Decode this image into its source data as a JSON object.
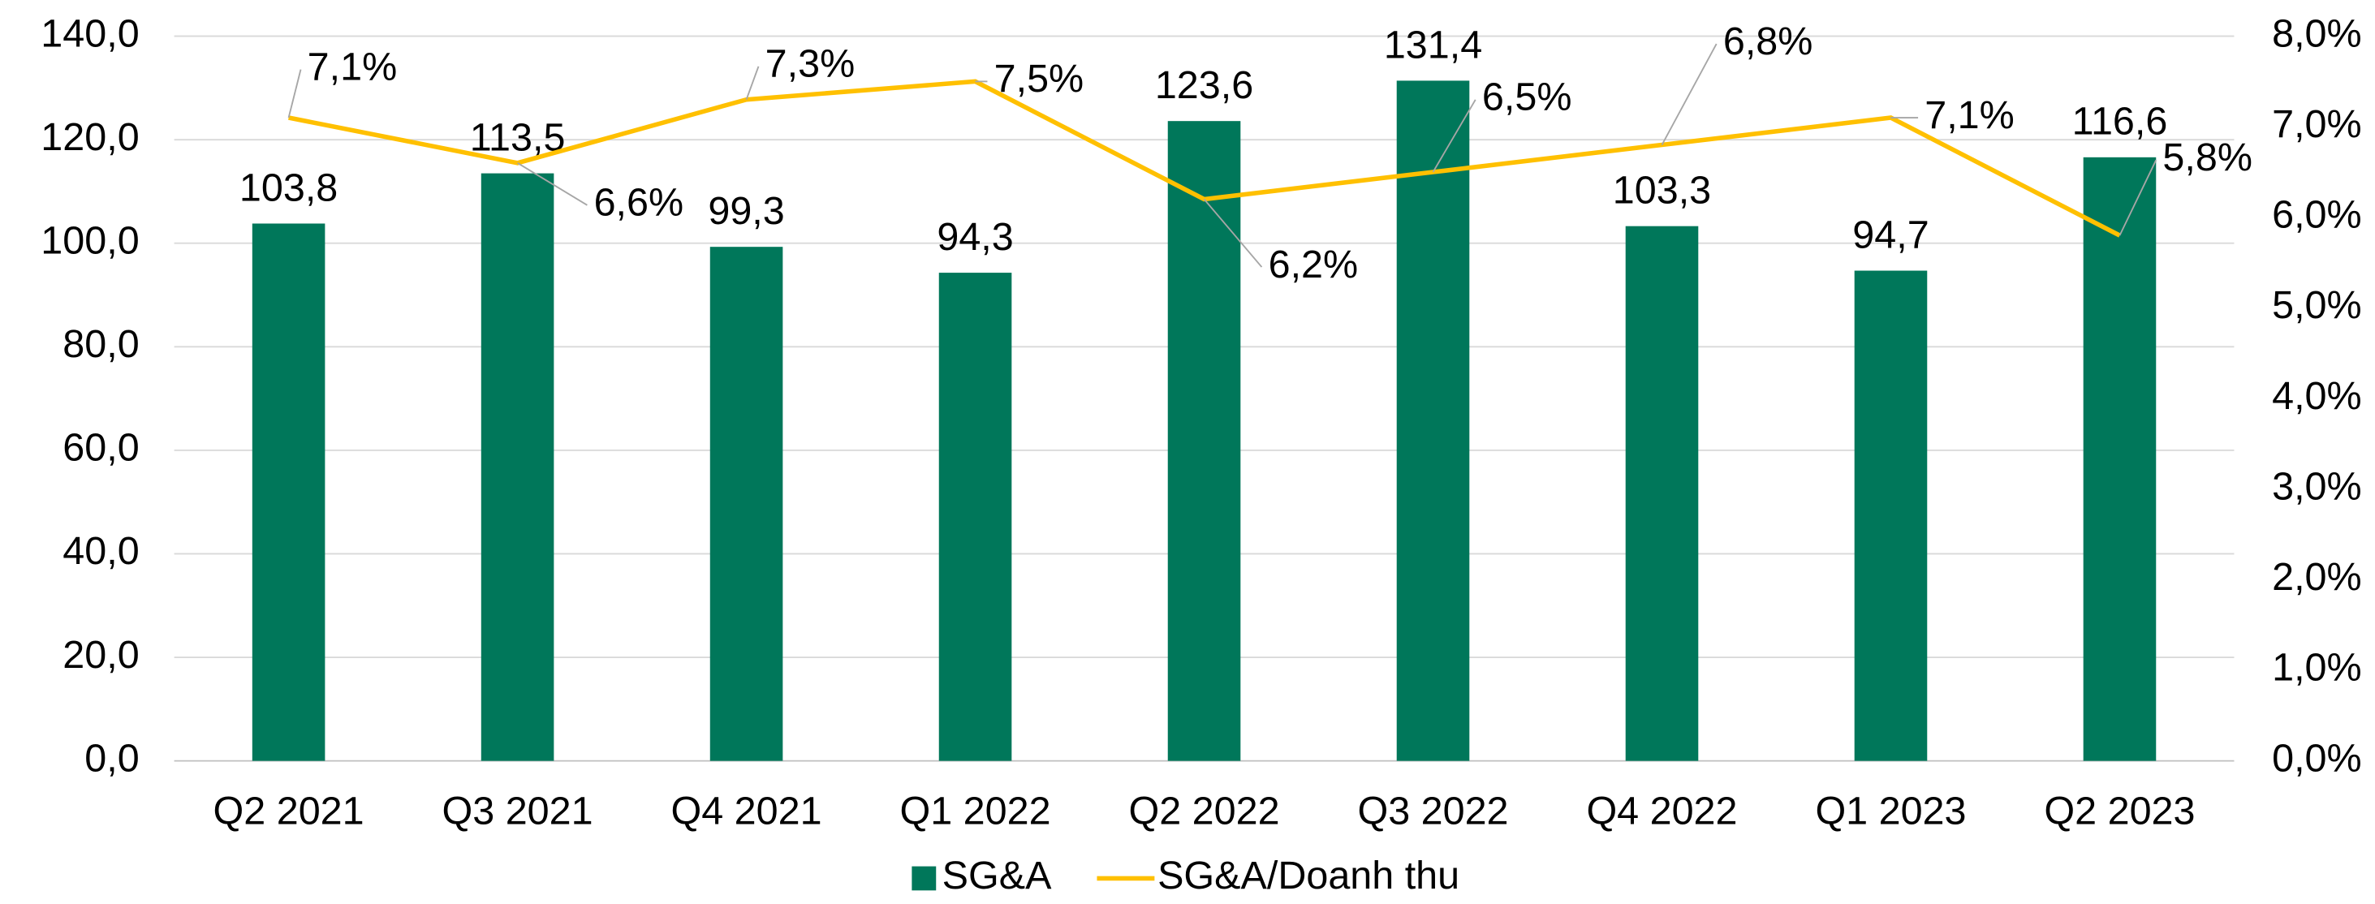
{
  "chart_data": {
    "type": "bar",
    "categories": [
      "Q2 2021",
      "Q3 2021",
      "Q4 2021",
      "Q1 2022",
      "Q2 2022",
      "Q3 2022",
      "Q4 2022",
      "Q1 2023",
      "Q2 2023"
    ],
    "series": [
      {
        "name": "SG&A",
        "type": "bar",
        "color": "#00775a",
        "values": [
          103.8,
          113.5,
          99.3,
          94.3,
          123.6,
          131.4,
          103.3,
          94.7,
          116.6
        ],
        "value_labels": [
          "103,8",
          "113,5",
          "99,3",
          "94,3",
          "123,6",
          "131,4",
          "103,3",
          "94,7",
          "116,6"
        ]
      },
      {
        "name": "SG&A/Doanh thu",
        "type": "line",
        "axis": "y2",
        "color": "#ffc000",
        "values": [
          7.1,
          6.6,
          7.3,
          7.5,
          6.2,
          6.5,
          6.8,
          7.1,
          5.8
        ],
        "value_labels": [
          "7,1%",
          "6,6%",
          "7,3%",
          "7,5%",
          "6,2%",
          "6,5%",
          "6,8%",
          "7,1%",
          "5,8%"
        ]
      }
    ],
    "ylim": [
      0,
      140
    ],
    "yticks": [
      {
        "value": 0,
        "label": "0,0"
      },
      {
        "value": 20,
        "label": "20,0"
      },
      {
        "value": 40,
        "label": "40,0"
      },
      {
        "value": 60,
        "label": "60,0"
      },
      {
        "value": 80,
        "label": "80,0"
      },
      {
        "value": 100,
        "label": "100,0"
      },
      {
        "value": 120,
        "label": "120,0"
      },
      {
        "value": 140,
        "label": "140,0"
      }
    ],
    "y2lim": [
      0,
      8
    ],
    "y2ticks": [
      {
        "value": 0,
        "label": "0,0%"
      },
      {
        "value": 1,
        "label": "1,0%"
      },
      {
        "value": 2,
        "label": "2,0%"
      },
      {
        "value": 3,
        "label": "3,0%"
      },
      {
        "value": 4,
        "label": "4,0%"
      },
      {
        "value": 5,
        "label": "5,0%"
      },
      {
        "value": 6,
        "label": "6,0%"
      },
      {
        "value": 7,
        "label": "7,0%"
      },
      {
        "value": 8,
        "label": "8,0%"
      }
    ],
    "grid": true,
    "legend": "bottom"
  }
}
